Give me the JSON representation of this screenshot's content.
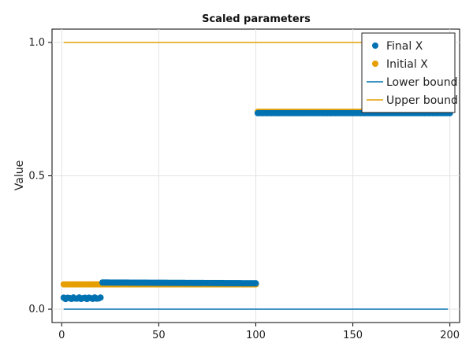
{
  "chart_data": {
    "type": "scatter",
    "title": "Scaled parameters",
    "xlabel": "",
    "ylabel": "Value",
    "xlim": [
      -5,
      205
    ],
    "ylim": [
      -0.05,
      1.05
    ],
    "xticks": [
      0,
      50,
      100,
      150,
      200
    ],
    "xtick_labels": [
      "0",
      "50",
      "100",
      "150",
      "200"
    ],
    "yticks": [
      0.0,
      0.5,
      1.0
    ],
    "ytick_labels": [
      "0.0",
      "0.5",
      "1.0"
    ],
    "grid": true,
    "legend_position": "top-right",
    "series": [
      {
        "name": "Final X",
        "kind": "scatter",
        "color": "#0072b2",
        "x_ranges": [
          {
            "from": 1,
            "to": 20,
            "y": 0.041,
            "jitter": 0.003
          },
          {
            "from": 21,
            "to": 100,
            "y_start": 0.1,
            "y_end": 0.097
          },
          {
            "from": 101,
            "to": 200,
            "y": 0.735
          }
        ]
      },
      {
        "name": "Initial X",
        "kind": "scatter",
        "color": "#e69f00",
        "x_ranges": [
          {
            "from": 1,
            "to": 100,
            "y": 0.093
          },
          {
            "from": 101,
            "to": 200,
            "y": 0.74
          }
        ]
      },
      {
        "name": "Lower bound",
        "kind": "line",
        "color": "#0072b2",
        "segments": [
          {
            "x": [
              1,
              199
            ],
            "y": [
              0.0,
              0.0
            ]
          },
          {
            "x": [
              101,
              199
            ],
            "y": [
              0.73,
              0.73
            ]
          }
        ]
      },
      {
        "name": "Upper bound",
        "kind": "line",
        "color": "#e69f00",
        "segments": [
          {
            "x": [
              1,
              199
            ],
            "y": [
              1.0,
              1.0
            ]
          }
        ]
      }
    ]
  }
}
